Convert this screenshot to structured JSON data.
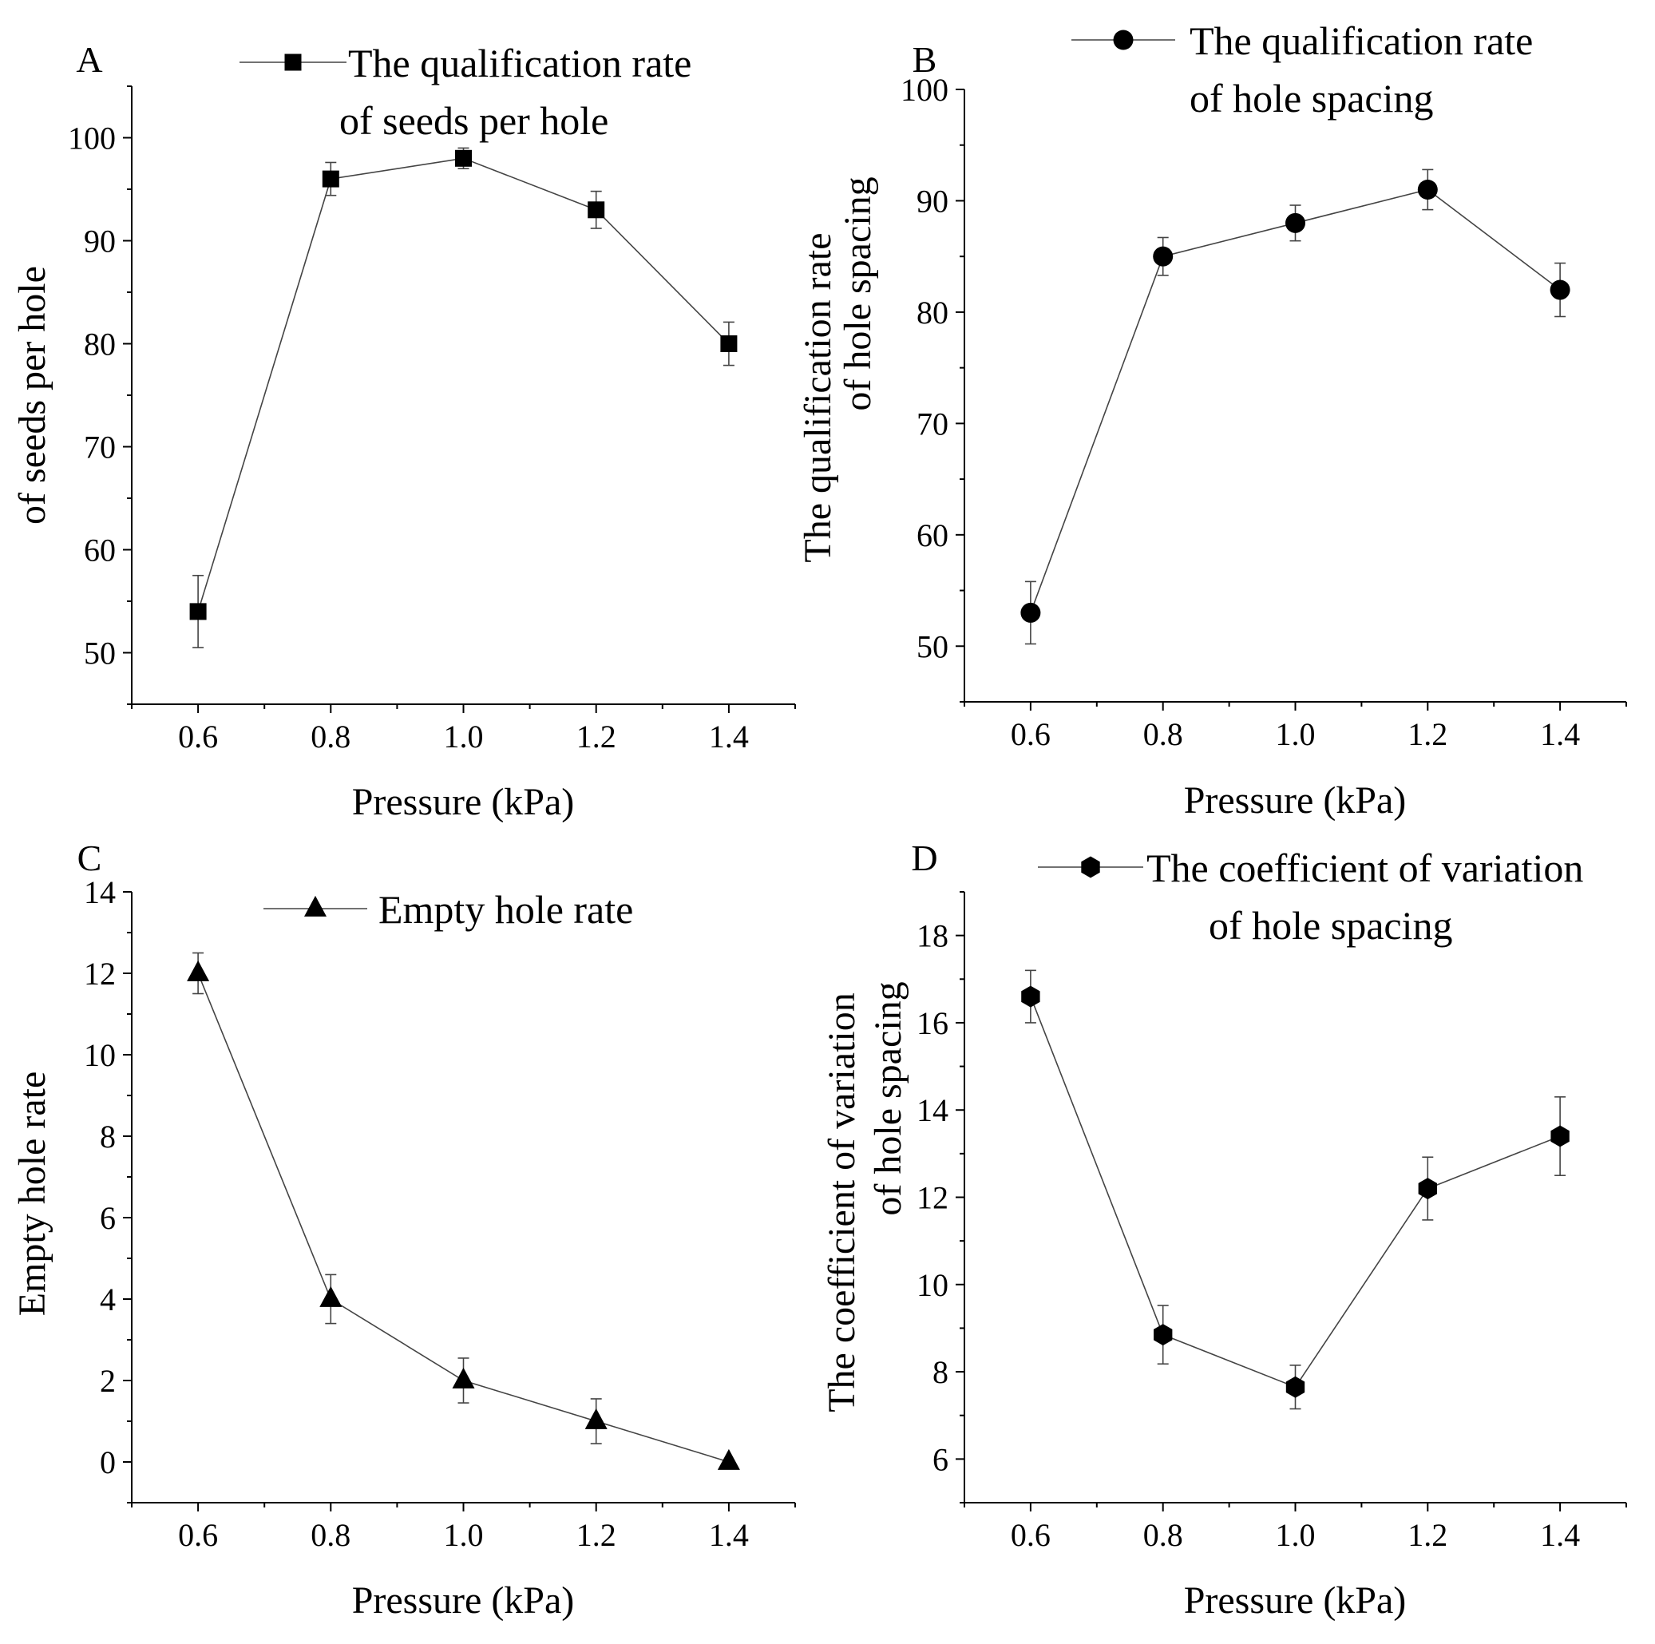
{
  "chart_data": [
    {
      "panel": "A",
      "type": "line",
      "marker": "square",
      "x": [
        0.6,
        0.8,
        1.0,
        1.2,
        1.4
      ],
      "values": [
        54,
        96,
        98,
        93,
        80
      ],
      "errors": [
        3.5,
        1.6,
        1.0,
        1.8,
        2.1
      ],
      "legend": [
        "The qualification rate",
        "of seeds per hole"
      ],
      "ylabel": "of seeds per hole",
      "xlabel": "Pressure (kPa)",
      "xlim": [
        0.5,
        1.5
      ],
      "ylim": [
        45,
        105
      ],
      "xticks": [
        "0.6",
        "0.8",
        "1.0",
        "1.2",
        "1.4"
      ],
      "yticks": [
        "50",
        "60",
        "70",
        "80",
        "90",
        "100"
      ],
      "ytick_values": [
        50,
        60,
        70,
        80,
        90,
        100
      ]
    },
    {
      "panel": "B",
      "type": "line",
      "marker": "circle",
      "x": [
        0.6,
        0.8,
        1.0,
        1.2,
        1.4
      ],
      "values": [
        53,
        85,
        88,
        91,
        82
      ],
      "errors": [
        2.8,
        1.7,
        1.6,
        1.8,
        2.4
      ],
      "legend": [
        "The qualification rate",
        "of hole spacing"
      ],
      "ylabel": [
        "The qualification rate",
        "of hole spacing"
      ],
      "xlabel": "Pressure (kPa)",
      "xlim": [
        0.5,
        1.5
      ],
      "ylim": [
        45,
        100
      ],
      "xticks": [
        "0.6",
        "0.8",
        "1.0",
        "1.2",
        "1.4"
      ],
      "yticks": [
        "50",
        "60",
        "70",
        "80",
        "90",
        "100"
      ],
      "ytick_values": [
        50,
        60,
        70,
        80,
        90,
        100
      ]
    },
    {
      "panel": "C",
      "type": "line",
      "marker": "triangle",
      "x": [
        0.6,
        0.8,
        1.0,
        1.2,
        1.4
      ],
      "values": [
        12,
        4,
        2,
        1,
        0
      ],
      "errors": [
        0.5,
        0.6,
        0.55,
        0.55,
        0.05
      ],
      "legend": [
        "Empty hole rate"
      ],
      "ylabel": "Empty hole rate",
      "xlabel": "Pressure (kPa)",
      "xlim": [
        0.5,
        1.5
      ],
      "ylim": [
        -1,
        14
      ],
      "xticks": [
        "0.6",
        "0.8",
        "1.0",
        "1.2",
        "1.4"
      ],
      "yticks": [
        "0",
        "2",
        "4",
        "6",
        "8",
        "10",
        "12",
        "14"
      ],
      "ytick_values": [
        0,
        2,
        4,
        6,
        8,
        10,
        12,
        14
      ]
    },
    {
      "panel": "D",
      "type": "line",
      "marker": "hexagon",
      "x": [
        0.6,
        0.8,
        1.0,
        1.2,
        1.4
      ],
      "values": [
        16.6,
        8.85,
        7.65,
        12.2,
        13.4
      ],
      "errors": [
        0.6,
        0.67,
        0.5,
        0.72,
        0.9
      ],
      "legend": [
        "The coefficient of variation",
        "of hole spacing"
      ],
      "ylabel": [
        "The coefficient of variation",
        "of hole spacing"
      ],
      "xlabel": "Pressure (kPa)",
      "xlim": [
        0.5,
        1.5
      ],
      "ylim": [
        5,
        19
      ],
      "xticks": [
        "0.6",
        "0.8",
        "1.0",
        "1.2",
        "1.4"
      ],
      "yticks": [
        "6",
        "8",
        "10",
        "12",
        "14",
        "16",
        "18"
      ],
      "ytick_values": [
        6,
        8,
        10,
        12,
        14,
        16,
        18
      ]
    }
  ]
}
